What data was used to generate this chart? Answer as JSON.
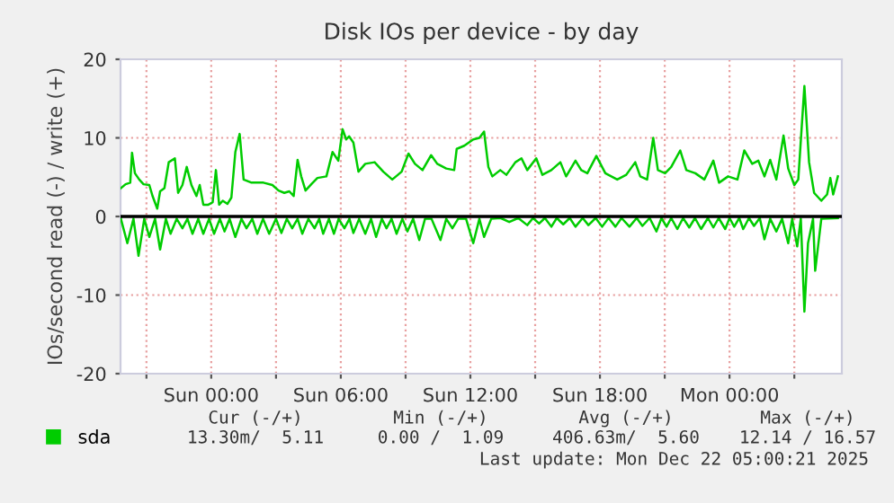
{
  "chart_data": {
    "type": "line",
    "title": "Disk IOs per device - by day",
    "ylabel": "IOs/second read (-) / write (+)",
    "xlim": [
      "2025-12-20T19:48",
      "2025-12-22T05:12"
    ],
    "ylim": [
      -20,
      20
    ],
    "xticks": [
      {
        "value": "2025-12-20T21:00",
        "label": null
      },
      {
        "value": "2025-12-21T00:00",
        "label": "Sun 00:00"
      },
      {
        "value": "2025-12-21T03:00",
        "label": null
      },
      {
        "value": "2025-12-21T06:00",
        "label": "Sun 06:00"
      },
      {
        "value": "2025-12-21T09:00",
        "label": null
      },
      {
        "value": "2025-12-21T12:00",
        "label": "Sun 12:00"
      },
      {
        "value": "2025-12-21T15:00",
        "label": null
      },
      {
        "value": "2025-12-21T18:00",
        "label": "Sun 18:00"
      },
      {
        "value": "2025-12-21T21:00",
        "label": null
      },
      {
        "value": "2025-12-22T00:00",
        "label": "Mon 00:00"
      },
      {
        "value": "2025-12-22T03:00",
        "label": null
      }
    ],
    "yticks": [
      -20,
      -10,
      0,
      10,
      20
    ],
    "grid": true,
    "legend": "bottom left",
    "marker": "none",
    "line_style": "solid",
    "ref_lines": [
      {
        "axis": "y",
        "value": 0,
        "color": "#000000"
      }
    ],
    "series": [
      {
        "name": "sda",
        "color": "#00cc00",
        "x": [
          "2025-12-20T19:49",
          "2025-12-20T20:02",
          "2025-12-20T20:15",
          "2025-12-20T20:20",
          "2025-12-20T20:28",
          "2025-12-20T20:40",
          "2025-12-20T20:52",
          "2025-12-20T21:08",
          "2025-12-20T21:17",
          "2025-12-20T21:30",
          "2025-12-20T21:38",
          "2025-12-20T21:50",
          "2025-12-20T22:02",
          "2025-12-20T22:19",
          "2025-12-20T22:28",
          "2025-12-20T22:40",
          "2025-12-20T22:52",
          "2025-12-20T23:05",
          "2025-12-20T23:19",
          "2025-12-20T23:28",
          "2025-12-20T23:38",
          "2025-12-20T23:52",
          "2025-12-21T00:04",
          "2025-12-21T00:13",
          "2025-12-21T00:22",
          "2025-12-21T00:32",
          "2025-12-21T00:45",
          "2025-12-21T00:56",
          "2025-12-21T01:07",
          "2025-12-21T01:19",
          "2025-12-21T01:30",
          "2025-12-21T01:52",
          "2025-12-21T02:25",
          "2025-12-21T02:50",
          "2025-12-21T03:07",
          "2025-12-21T03:23",
          "2025-12-21T03:37",
          "2025-12-21T03:49",
          "2025-12-21T04:00",
          "2025-12-21T04:10",
          "2025-12-21T04:22",
          "2025-12-21T04:38",
          "2025-12-21T04:55",
          "2025-12-21T05:20",
          "2025-12-21T05:37",
          "2025-12-21T05:53",
          "2025-12-21T06:05",
          "2025-12-21T06:15",
          "2025-12-21T06:23",
          "2025-12-21T06:35",
          "2025-12-21T06:49",
          "2025-12-21T07:08",
          "2025-12-21T07:34",
          "2025-12-21T07:58",
          "2025-12-21T08:23",
          "2025-12-21T08:49",
          "2025-12-21T09:08",
          "2025-12-21T09:26",
          "2025-12-21T09:47",
          "2025-12-21T10:11",
          "2025-12-21T10:28",
          "2025-12-21T10:53",
          "2025-12-21T11:15",
          "2025-12-21T11:22",
          "2025-12-21T11:43",
          "2025-12-21T12:08",
          "2025-12-21T12:25",
          "2025-12-21T12:38",
          "2025-12-21T12:50",
          "2025-12-21T13:01",
          "2025-12-21T13:23",
          "2025-12-21T13:40",
          "2025-12-21T14:05",
          "2025-12-21T14:22",
          "2025-12-21T14:38",
          "2025-12-21T15:03",
          "2025-12-21T15:20",
          "2025-12-21T15:45",
          "2025-12-21T16:10",
          "2025-12-21T16:26",
          "2025-12-21T16:52",
          "2025-12-21T17:08",
          "2025-12-21T17:25",
          "2025-12-21T17:50",
          "2025-12-21T18:15",
          "2025-12-21T18:48",
          "2025-12-21T19:13",
          "2025-12-21T19:38",
          "2025-12-21T19:52",
          "2025-12-21T20:11",
          "2025-12-21T20:28",
          "2025-12-21T20:41",
          "2025-12-21T21:01",
          "2025-12-21T21:18",
          "2025-12-21T21:43",
          "2025-12-21T22:00",
          "2025-12-21T22:25",
          "2025-12-21T22:50",
          "2025-12-21T23:15",
          "2025-12-21T23:31",
          "2025-12-21T23:56",
          "2025-12-22T00:22",
          "2025-12-22T00:41",
          "2025-12-22T01:03",
          "2025-12-22T01:20",
          "2025-12-22T01:37",
          "2025-12-22T01:53",
          "2025-12-22T02:10",
          "2025-12-22T02:30",
          "2025-12-22T02:43",
          "2025-12-22T03:00",
          "2025-12-22T03:11",
          "2025-12-22T03:28",
          "2025-12-22T03:41",
          "2025-12-22T03:55",
          "2025-12-22T04:15",
          "2025-12-22T04:31",
          "2025-12-22T04:40",
          "2025-12-22T04:48",
          "2025-12-22T05:01"
        ],
        "values": [
          3.6,
          4.1,
          4.3,
          8.1,
          5.5,
          4.7,
          4.1,
          4.0,
          2.6,
          1.0,
          3.2,
          3.6,
          6.9,
          7.4,
          3.0,
          4.0,
          6.3,
          4.0,
          2.6,
          4.0,
          1.5,
          1.5,
          1.8,
          5.9,
          1.5,
          2.0,
          1.6,
          2.4,
          8.2,
          10.5,
          4.7,
          4.3,
          4.3,
          4.0,
          3.3,
          3.0,
          3.2,
          2.6,
          7.2,
          5.1,
          3.3,
          4.1,
          4.9,
          5.1,
          8.2,
          7.1,
          11.1,
          9.8,
          10.2,
          9.4,
          5.7,
          6.7,
          6.9,
          5.7,
          4.7,
          5.7,
          8.0,
          6.7,
          5.9,
          7.8,
          6.7,
          6.1,
          5.9,
          8.6,
          9.0,
          9.8,
          10.0,
          10.8,
          6.3,
          5.1,
          5.9,
          5.3,
          6.9,
          7.4,
          5.9,
          7.4,
          5.3,
          5.9,
          6.9,
          5.1,
          7.1,
          5.9,
          5.5,
          7.7,
          5.5,
          4.7,
          5.3,
          6.9,
          5.1,
          4.7,
          10.0,
          5.9,
          5.5,
          6.3,
          8.4,
          5.9,
          5.5,
          4.7,
          7.1,
          4.3,
          5.1,
          4.7,
          8.4,
          6.7,
          7.1,
          5.1,
          7.2,
          4.7,
          10.3,
          6.1,
          4.0,
          4.7,
          16.6,
          6.9,
          3.0,
          2.0,
          2.8,
          4.9,
          2.8,
          5.1
        ]
      },
      {
        "color": "#00cc00",
        "x": [
          "2025-12-20T19:49",
          "2025-12-20T20:07",
          "2025-12-20T20:24",
          "2025-12-20T20:38",
          "2025-12-20T20:54",
          "2025-12-20T21:08",
          "2025-12-20T21:24",
          "2025-12-20T21:38",
          "2025-12-20T21:54",
          "2025-12-20T22:07",
          "2025-12-20T22:24",
          "2025-12-20T22:40",
          "2025-12-20T22:54",
          "2025-12-20T23:08",
          "2025-12-20T23:24",
          "2025-12-20T23:38",
          "2025-12-20T23:54",
          "2025-12-21T00:08",
          "2025-12-21T00:24",
          "2025-12-21T00:37",
          "2025-12-21T00:51",
          "2025-12-21T01:07",
          "2025-12-21T01:24",
          "2025-12-21T01:38",
          "2025-12-21T01:54",
          "2025-12-21T02:08",
          "2025-12-21T02:24",
          "2025-12-21T02:41",
          "2025-12-21T03:00",
          "2025-12-21T03:15",
          "2025-12-21T03:30",
          "2025-12-21T03:45",
          "2025-12-21T04:00",
          "2025-12-21T04:13",
          "2025-12-21T04:30",
          "2025-12-21T04:47",
          "2025-12-21T05:00",
          "2025-12-21T05:11",
          "2025-12-21T05:27",
          "2025-12-21T05:41",
          "2025-12-21T05:54",
          "2025-12-21T06:10",
          "2025-12-21T06:24",
          "2025-12-21T06:35",
          "2025-12-21T06:51",
          "2025-12-21T07:08",
          "2025-12-21T07:24",
          "2025-12-21T07:38",
          "2025-12-21T07:54",
          "2025-12-21T08:07",
          "2025-12-21T08:21",
          "2025-12-21T08:35",
          "2025-12-21T08:51",
          "2025-12-21T09:05",
          "2025-12-21T09:21",
          "2025-12-21T09:38",
          "2025-12-21T09:54",
          "2025-12-21T10:12",
          "2025-12-21T10:37",
          "2025-12-21T10:53",
          "2025-12-21T11:10",
          "2025-12-21T11:26",
          "2025-12-21T11:48",
          "2025-12-21T12:08",
          "2025-12-21T12:25",
          "2025-12-21T12:38",
          "2025-12-21T12:58",
          "2025-12-21T13:24",
          "2025-12-21T13:48",
          "2025-12-21T14:13",
          "2025-12-21T14:38",
          "2025-12-21T14:54",
          "2025-12-21T15:11",
          "2025-12-21T15:27",
          "2025-12-21T15:45",
          "2025-12-21T16:00",
          "2025-12-21T16:18",
          "2025-12-21T16:36",
          "2025-12-21T16:52",
          "2025-12-21T17:12",
          "2025-12-21T17:28",
          "2025-12-21T17:48",
          "2025-12-21T18:06",
          "2025-12-21T18:24",
          "2025-12-21T18:43",
          "2025-12-21T19:00",
          "2025-12-21T19:22",
          "2025-12-21T19:42",
          "2025-12-21T19:58",
          "2025-12-21T20:18",
          "2025-12-21T20:37",
          "2025-12-21T20:51",
          "2025-12-21T21:05",
          "2025-12-21T21:18",
          "2025-12-21T21:35",
          "2025-12-21T21:51",
          "2025-12-21T22:08",
          "2025-12-21T22:24",
          "2025-12-21T22:41",
          "2025-12-21T23:00",
          "2025-12-21T23:15",
          "2025-12-21T23:30",
          "2025-12-21T23:48",
          "2025-12-22T00:00",
          "2025-12-22T00:13",
          "2025-12-22T00:27",
          "2025-12-22T00:38",
          "2025-12-22T00:54",
          "2025-12-22T01:08",
          "2025-12-22T01:24",
          "2025-12-22T01:37",
          "2025-12-22T01:53",
          "2025-12-22T02:10",
          "2025-12-22T02:26",
          "2025-12-22T02:43",
          "2025-12-22T02:54",
          "2025-12-22T03:08",
          "2025-12-22T03:18",
          "2025-12-22T03:28",
          "2025-12-22T03:38",
          "2025-12-22T03:52",
          "2025-12-22T03:58",
          "2025-12-22T04:15",
          "2025-12-22T05:01"
        ],
        "values": [
          -0.3,
          -3.4,
          -0.3,
          -5.0,
          -0.3,
          -2.6,
          -0.3,
          -4.2,
          -0.3,
          -2.2,
          -0.3,
          -1.5,
          -0.3,
          -2.2,
          -0.3,
          -2.2,
          -0.3,
          -2.2,
          -0.3,
          -1.9,
          -0.3,
          -2.6,
          -0.3,
          -1.5,
          -0.3,
          -2.2,
          -0.3,
          -2.2,
          -0.3,
          -2.1,
          -0.3,
          -1.5,
          -0.3,
          -2.2,
          -0.3,
          -1.5,
          -0.3,
          -2.2,
          -0.3,
          -2.2,
          -0.3,
          -1.5,
          -0.3,
          -2.1,
          -0.3,
          -2.2,
          -0.3,
          -2.6,
          -0.3,
          -1.5,
          -0.3,
          -2.2,
          -0.3,
          -1.9,
          -0.3,
          -3.0,
          -0.3,
          -0.3,
          -3.0,
          -0.3,
          -1.5,
          -0.3,
          -0.3,
          -3.4,
          -0.3,
          -2.6,
          -0.3,
          -0.2,
          -0.7,
          -0.2,
          -1.1,
          -0.2,
          -0.9,
          -0.2,
          -1.3,
          -0.2,
          -1.0,
          -0.2,
          -1.3,
          -0.2,
          -1.1,
          -0.2,
          -1.3,
          -0.2,
          -1.3,
          -0.2,
          -1.3,
          -0.2,
          -1.2,
          -0.2,
          -1.9,
          -0.2,
          -1.3,
          -0.2,
          -1.6,
          -0.2,
          -1.4,
          -0.2,
          -1.6,
          -0.2,
          -1.4,
          -0.2,
          -1.6,
          -0.2,
          -1.3,
          -0.2,
          -1.6,
          -0.2,
          -1.2,
          -0.2,
          -2.9,
          -0.3,
          -1.9,
          -0.3,
          -3.4,
          -0.3,
          -3.8,
          -0.3,
          -12.1,
          -3.4,
          -0.3,
          -6.9,
          -0.3,
          -0.2
        ]
      }
    ],
    "annotations": [
      "Cur (-/+)",
      "Min (-/+)",
      "Avg (-/+)",
      "Max (-/+)",
      "13.30m/  5.11",
      "0.00 /  1.09",
      "406.63m/  5.60",
      "12.14 / 16.57",
      "Last update: Mon Dec 22 05:00:21 2025"
    ]
  }
}
